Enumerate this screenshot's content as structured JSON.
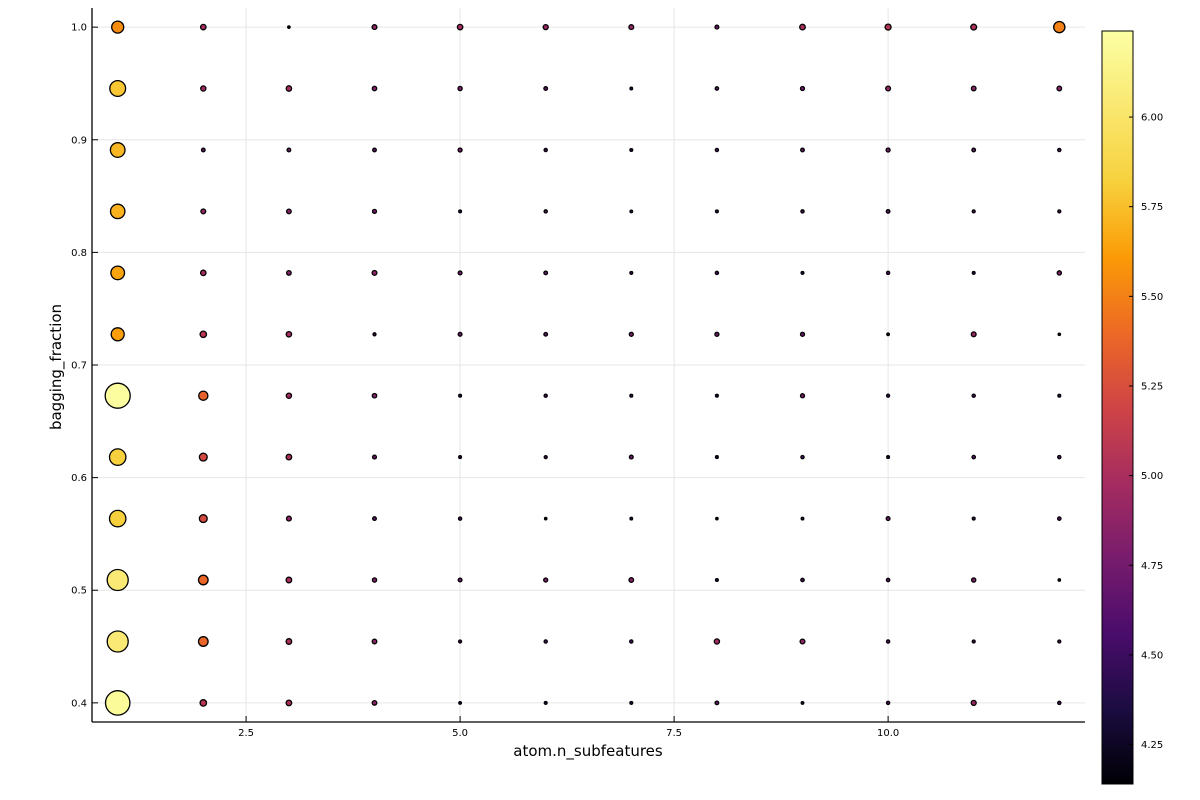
{
  "chart_data": {
    "type": "scatter",
    "xlabel": "atom.n_subfeatures",
    "ylabel": "bagging_fraction",
    "xlim": [
      0.7,
      12.3
    ],
    "ylim": [
      0.383,
      1.017
    ],
    "x_ticks": [
      2.5,
      5.0,
      7.5,
      10.0
    ],
    "x_tick_labels": [
      "2.5",
      "5.0",
      "7.5",
      "10.0"
    ],
    "y_ticks": [
      0.4,
      0.5,
      0.6,
      0.7,
      0.8,
      0.9,
      1.0
    ],
    "y_tick_labels": [
      "0.4",
      "0.5",
      "0.6",
      "0.7",
      "0.8",
      "0.9",
      "1.0"
    ],
    "grid": true,
    "colormap": "inferno",
    "colorbar": {
      "min": 4.14,
      "max": 6.24,
      "ticks": [
        4.25,
        4.5,
        4.75,
        5.0,
        5.25,
        5.5,
        5.75,
        6.0
      ],
      "tick_labels": [
        "4.25",
        "4.50",
        "4.75",
        "5.00",
        "5.25",
        "5.50",
        "5.75",
        "6.00"
      ]
    },
    "x": [
      1,
      2,
      3,
      4,
      5,
      6,
      7,
      8,
      9,
      10,
      11,
      12
    ],
    "y": [
      1.0,
      0.9455,
      0.8909,
      0.8364,
      0.7818,
      0.7273,
      0.6727,
      0.6182,
      0.5636,
      0.5091,
      0.4545,
      0.4
    ],
    "z": [
      [
        5.55,
        4.98,
        4.15,
        4.88,
        4.98,
        4.92,
        4.9,
        4.72,
        5.0,
        5.05,
        5.02,
        5.5
      ],
      [
        5.78,
        4.95,
        4.98,
        4.82,
        4.8,
        4.7,
        4.4,
        4.65,
        4.75,
        4.9,
        4.85,
        4.85
      ],
      [
        5.72,
        4.7,
        4.7,
        4.68,
        4.75,
        4.58,
        4.48,
        4.6,
        4.7,
        4.75,
        4.68,
        4.6
      ],
      [
        5.7,
        4.9,
        4.85,
        4.75,
        4.45,
        4.6,
        4.4,
        4.5,
        4.58,
        4.68,
        4.55,
        4.55
      ],
      [
        5.65,
        4.98,
        4.85,
        4.88,
        4.72,
        4.7,
        4.5,
        4.58,
        4.45,
        4.62,
        4.5,
        4.8
      ],
      [
        5.62,
        5.08,
        4.98,
        4.55,
        4.72,
        4.7,
        4.78,
        4.75,
        4.75,
        4.35,
        4.9,
        4.3
      ],
      [
        6.22,
        5.35,
        4.95,
        4.82,
        4.5,
        4.6,
        4.48,
        4.45,
        4.78,
        4.55,
        4.58,
        4.48
      ],
      [
        5.82,
        5.22,
        5.0,
        4.72,
        4.5,
        4.55,
        4.72,
        4.45,
        4.6,
        4.45,
        4.65,
        4.62
      ],
      [
        5.82,
        5.22,
        4.88,
        4.7,
        4.62,
        4.25,
        4.4,
        4.25,
        4.4,
        4.72,
        4.5,
        4.65
      ],
      [
        6.05,
        5.38,
        5.0,
        4.8,
        4.72,
        4.78,
        4.85,
        4.5,
        4.65,
        4.65,
        4.8,
        4.3
      ],
      [
        6.05,
        5.38,
        5.0,
        4.85,
        4.55,
        4.62,
        4.58,
        4.95,
        4.88,
        4.62,
        4.55,
        4.55
      ],
      [
        6.2,
        5.08,
        5.0,
        4.85,
        4.42,
        4.45,
        4.45,
        4.68,
        4.4,
        4.62,
        4.92,
        4.62
      ]
    ]
  }
}
